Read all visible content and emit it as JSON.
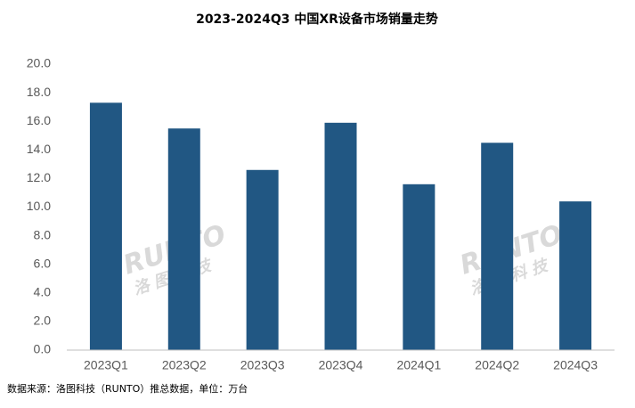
{
  "chart_data": {
    "type": "bar",
    "title": "2023-2024Q3 中国XR设备市场销量走势",
    "categories": [
      "2023Q1",
      "2023Q2",
      "2023Q3",
      "2023Q4",
      "2024Q1",
      "2024Q2",
      "2024Q3"
    ],
    "values": [
      17.3,
      15.5,
      12.6,
      15.9,
      11.6,
      14.5,
      10.4
    ],
    "color": "#215783",
    "ylim": [
      0,
      20
    ],
    "yticks": [
      {
        "value": 0,
        "label": "0.0"
      },
      {
        "value": 2,
        "label": "2.0"
      },
      {
        "value": 4,
        "label": "4.0"
      },
      {
        "value": 6,
        "label": "6.0"
      },
      {
        "value": 8,
        "label": "8.0"
      },
      {
        "value": 10,
        "label": "10.0"
      },
      {
        "value": 12,
        "label": "12.0"
      },
      {
        "value": 14,
        "label": "14.0"
      },
      {
        "value": 16,
        "label": "16.0"
      },
      {
        "value": 18,
        "label": "18.0"
      },
      {
        "value": 20,
        "label": "20.0"
      }
    ],
    "grid": false,
    "source": "数据来源：洛图科技（RUNTO）推总数据，单位：万台",
    "watermark": {
      "brand": "RUNTO",
      "name": "洛图科技"
    }
  }
}
